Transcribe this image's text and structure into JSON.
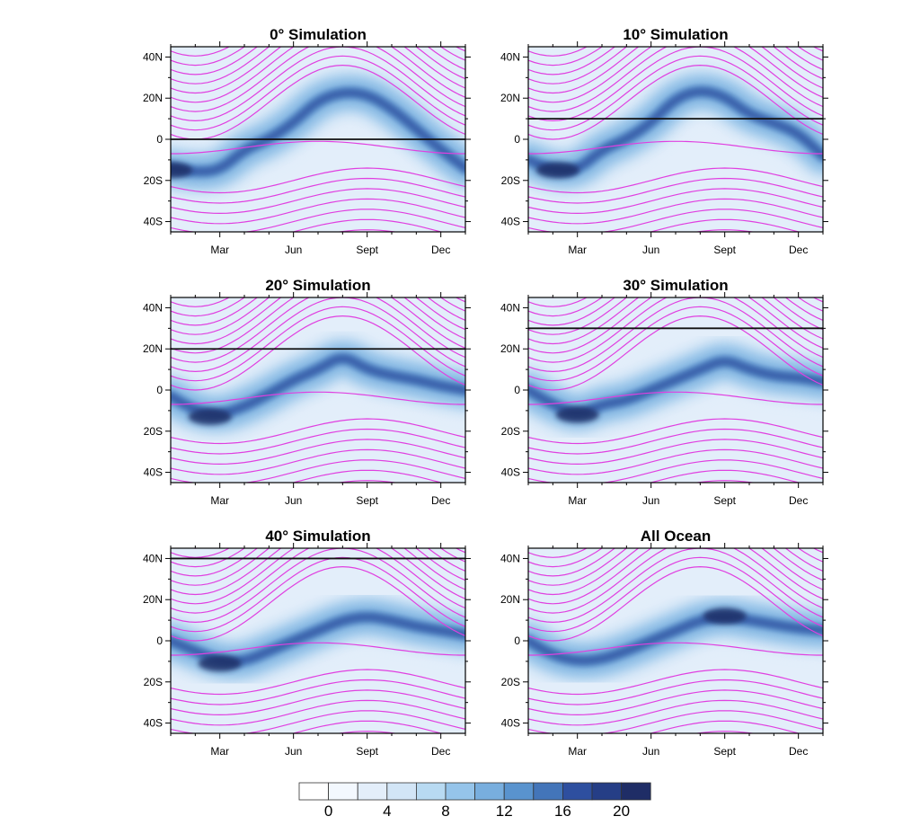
{
  "chart_data": {
    "type": "heatmap",
    "x_tick_labels": [
      "Mar",
      "Jun",
      "Sept",
      "Dec"
    ],
    "x_tick_months": [
      2,
      5,
      8,
      11
    ],
    "xlim_months": [
      0,
      12
    ],
    "y_tick_labels": [
      "40N",
      "20N",
      "0",
      "20S",
      "40S"
    ],
    "y_tick_values": [
      40,
      20,
      0,
      -20,
      -40
    ],
    "ylim": [
      -45,
      45
    ],
    "colorbar": {
      "levels": [
        0,
        2,
        4,
        6,
        8,
        10,
        12,
        14,
        16,
        18,
        20
      ],
      "labels": [
        "0",
        "4",
        "8",
        "12",
        "16",
        "20"
      ],
      "label_values": [
        0,
        4,
        8,
        12,
        16,
        20
      ],
      "colors": [
        "#ffffff",
        "#f3f8fe",
        "#e3eefa",
        "#d2e5f6",
        "#b8daf2",
        "#95c4ea",
        "#78aede",
        "#5993ce",
        "#4375b9",
        "#2e4f9f",
        "#253e86",
        "#1f2d66"
      ]
    },
    "contour_color": "#e040e0",
    "panels": [
      {
        "title": "0° Simulation",
        "reference_lat": 0,
        "itcz": [
          [
            0,
            -14
          ],
          [
            1,
            -16
          ],
          [
            2,
            -15
          ],
          [
            3,
            -5
          ],
          [
            4,
            0
          ],
          [
            5,
            8
          ],
          [
            6,
            19
          ],
          [
            7,
            23
          ],
          [
            8,
            22
          ],
          [
            9,
            15
          ],
          [
            10,
            5
          ],
          [
            11,
            -5
          ],
          [
            12,
            -14
          ]
        ],
        "peak": [
          0,
          -15
        ]
      },
      {
        "title": "10° Simulation",
        "reference_lat": 10,
        "itcz": [
          [
            0,
            -10
          ],
          [
            1,
            -15
          ],
          [
            2,
            -15
          ],
          [
            3,
            -5
          ],
          [
            4,
            0
          ],
          [
            5,
            8
          ],
          [
            6,
            20
          ],
          [
            7,
            24
          ],
          [
            8,
            21
          ],
          [
            9,
            12
          ],
          [
            10,
            8
          ],
          [
            11,
            3
          ],
          [
            12,
            -8
          ]
        ],
        "peak": [
          1.2,
          -15
        ]
      },
      {
        "title": "20° Simulation",
        "reference_lat": 20,
        "itcz": [
          [
            0,
            -3
          ],
          [
            1,
            -10
          ],
          [
            2,
            -12
          ],
          [
            3,
            -8
          ],
          [
            4,
            -2
          ],
          [
            5,
            5
          ],
          [
            6,
            10
          ],
          [
            7,
            17
          ],
          [
            8,
            10
          ],
          [
            9,
            7
          ],
          [
            10,
            5
          ],
          [
            11,
            2
          ],
          [
            12,
            0
          ]
        ],
        "peak": [
          1.6,
          -13
        ]
      },
      {
        "title": "30° Simulation",
        "reference_lat": 30,
        "itcz": [
          [
            0,
            0
          ],
          [
            1,
            -7
          ],
          [
            2,
            -12
          ],
          [
            3,
            -7
          ],
          [
            4,
            -5
          ],
          [
            5,
            0
          ],
          [
            6,
            5
          ],
          [
            7,
            10
          ],
          [
            8,
            15
          ],
          [
            9,
            10
          ],
          [
            10,
            7
          ],
          [
            11,
            6
          ],
          [
            12,
            4
          ]
        ],
        "peak": [
          2,
          -12
        ]
      },
      {
        "title": "40° Simulation",
        "reference_lat": 40,
        "itcz": [
          [
            0,
            0
          ],
          [
            1,
            -5
          ],
          [
            2,
            -10
          ],
          [
            3,
            -10
          ],
          [
            4,
            -5
          ],
          [
            5,
            0
          ],
          [
            6,
            5
          ],
          [
            7,
            10
          ],
          [
            8,
            12
          ],
          [
            9,
            10
          ],
          [
            10,
            7
          ],
          [
            11,
            5
          ],
          [
            12,
            3
          ]
        ],
        "peak": [
          2,
          -11
        ]
      },
      {
        "title": "All Ocean",
        "reference_lat": null,
        "itcz": [
          [
            0,
            0
          ],
          [
            1,
            -7
          ],
          [
            2,
            -10
          ],
          [
            3,
            -9
          ],
          [
            4,
            -5
          ],
          [
            5,
            0
          ],
          [
            6,
            5
          ],
          [
            7,
            10
          ],
          [
            8,
            12
          ],
          [
            9,
            10
          ],
          [
            10,
            8
          ],
          [
            11,
            6
          ],
          [
            12,
            5
          ]
        ],
        "peak": [
          8,
          12
        ]
      }
    ]
  }
}
